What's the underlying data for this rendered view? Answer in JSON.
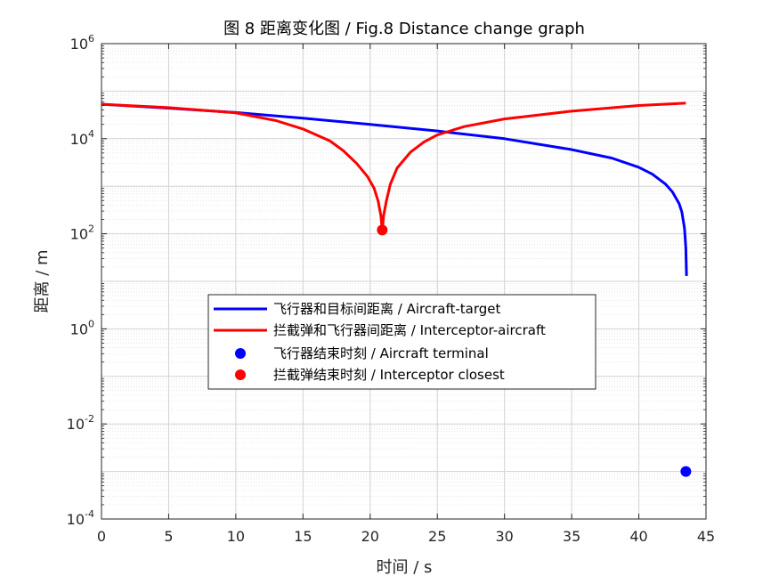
{
  "chart_data": {
    "type": "line",
    "title": "图 8 距离变化图 / Fig.8 Distance change graph",
    "xlabel": "时间 / s",
    "ylabel": "距离 / m",
    "xlim": [
      0,
      45
    ],
    "ylim": [
      0.0001,
      1000000
    ],
    "yscale": "log",
    "grid": true,
    "minor_grid": true,
    "x_ticks": [
      "0",
      "5",
      "10",
      "15",
      "20",
      "25",
      "30",
      "35",
      "40",
      "45"
    ],
    "y_ticks": [
      {
        "base": "10",
        "exp": "-4"
      },
      {
        "base": "10",
        "exp": "-2"
      },
      {
        "base": "10",
        "exp": "0"
      },
      {
        "base": "10",
        "exp": "2"
      },
      {
        "base": "10",
        "exp": "4"
      },
      {
        "base": "10",
        "exp": "6"
      }
    ],
    "legend_position": "center",
    "series": [
      {
        "name": "飞行器和目标间距离 / Aircraft-target",
        "color": "#0000FF",
        "style": "line",
        "x": [
          0,
          5,
          10,
          15,
          20,
          25,
          30,
          35,
          38,
          40,
          41,
          42,
          42.5,
          43,
          43.2,
          43.4,
          43.5,
          43.55
        ],
        "y": [
          53000,
          44000,
          35500,
          27000,
          20000,
          14500,
          10000,
          5900,
          3900,
          2500,
          1800,
          1100,
          760,
          430,
          290,
          130,
          50,
          13
        ]
      },
      {
        "name": "拦截弹和飞行器间距离 / Interceptor-aircraft",
        "color": "#FF0000",
        "style": "line",
        "x": [
          0,
          5,
          10,
          13,
          15,
          17,
          18,
          19,
          19.8,
          20.3,
          20.6,
          20.8,
          20.9,
          21.0,
          21.2,
          21.5,
          22,
          23,
          24,
          25,
          27,
          30,
          35,
          40,
          43.5
        ],
        "y": [
          53000,
          45000,
          35000,
          24000,
          16000,
          9000,
          5600,
          3000,
          1600,
          900,
          480,
          240,
          120,
          240,
          480,
          1100,
          2400,
          5200,
          8500,
          12000,
          18000,
          26000,
          38000,
          50000,
          56000
        ]
      },
      {
        "name": "飞行器结束时刻 / Aircraft terminal",
        "color": "#0000FF",
        "style": "marker",
        "x": [
          43.5
        ],
        "y": [
          0.001
        ]
      },
      {
        "name": "拦截弹结束时刻 / Interceptor closest",
        "color": "#FF0000",
        "style": "marker",
        "x": [
          20.9
        ],
        "y": [
          120
        ]
      }
    ]
  }
}
